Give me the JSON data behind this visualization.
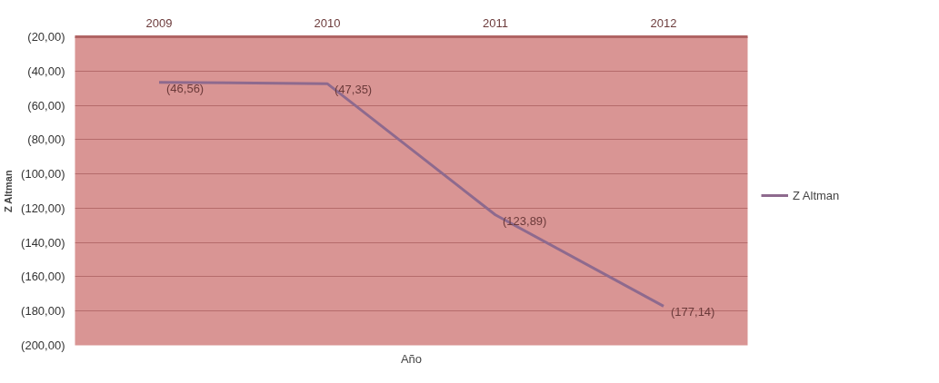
{
  "chart_data": {
    "type": "line",
    "xlabel": "Año",
    "ylabel": "Z Altman",
    "categories": [
      "2009",
      "2010",
      "2011",
      "2012"
    ],
    "series": [
      {
        "name": "Z Altman",
        "color": "#8e6a8e",
        "values": [
          -46.56,
          -47.35,
          -123.89,
          -177.14
        ],
        "value_labels": [
          "(46,56)",
          "(47,35)",
          "(123,89)",
          "(177,14)"
        ]
      }
    ],
    "ylim": [
      -200,
      -20
    ],
    "yticks": [
      {
        "value": -20,
        "label": "(20,00)"
      },
      {
        "value": -40,
        "label": "(40,00)"
      },
      {
        "value": -60,
        "label": "(60,00)"
      },
      {
        "value": -80,
        "label": "(80,00)"
      },
      {
        "value": -100,
        "label": "(100,00)"
      },
      {
        "value": -120,
        "label": "(120,00)"
      },
      {
        "value": -140,
        "label": "(140,00)"
      },
      {
        "value": -160,
        "label": "(160,00)"
      },
      {
        "value": -180,
        "label": "(180,00)"
      },
      {
        "value": -200,
        "label": "(200,00)"
      }
    ],
    "grid": "y",
    "legend": "right",
    "marker": "none",
    "line_style": "solid"
  }
}
